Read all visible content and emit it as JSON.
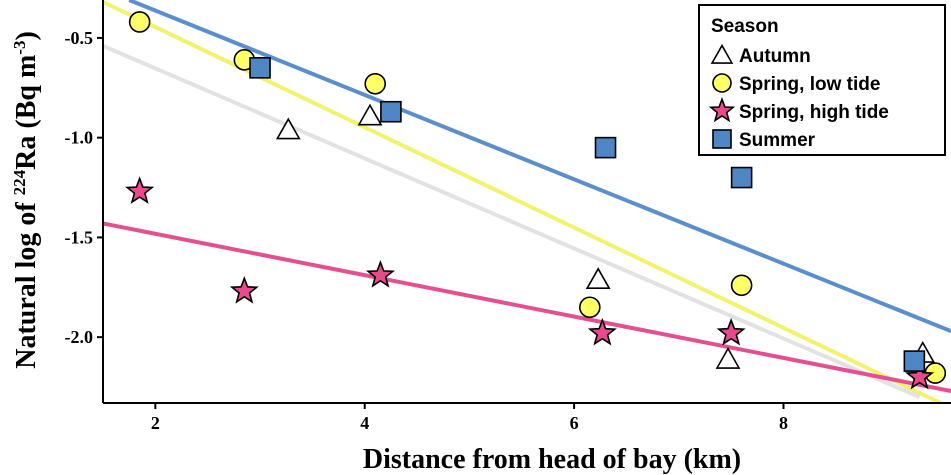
{
  "chart_data": {
    "type": "scatter",
    "title": "",
    "xlabel": "Distance from head of bay (km)",
    "ylabel_parts": [
      "Natural log of ",
      "224",
      "Ra (Bq m",
      "-3",
      ")"
    ],
    "xlim": [
      1.5,
      9.6
    ],
    "ylim": [
      -2.33,
      -0.31
    ],
    "xticks": [
      2,
      4,
      6,
      8
    ],
    "yticks": [
      -0.5,
      -1.0,
      -1.5,
      -2.0
    ],
    "ytick_labels": [
      "-0.5",
      "-1.0",
      "-1.5",
      "-2.0"
    ],
    "grid": false,
    "legend": {
      "title": "Season",
      "placement": "top-right"
    },
    "series": [
      {
        "name": "Autumn",
        "marker": "triangle",
        "color": "#ffffff",
        "points": [
          [
            3.27,
            -0.96
          ],
          [
            4.05,
            -0.89
          ],
          [
            6.23,
            -1.71
          ],
          [
            7.47,
            -2.11
          ],
          [
            9.33,
            -2.08
          ]
        ],
        "fit": [
          [
            1.5,
            -0.54
          ],
          [
            9.3,
            -2.3
          ]
        ],
        "fit_color": "#e2e2e2"
      },
      {
        "name": "Spring, low tide",
        "marker": "circle",
        "color": "#ffff66",
        "points": [
          [
            1.85,
            -0.42
          ],
          [
            2.85,
            -0.61
          ],
          [
            4.1,
            -0.73
          ],
          [
            6.15,
            -1.85
          ],
          [
            7.6,
            -1.74
          ],
          [
            9.45,
            -2.18
          ]
        ],
        "fit": [
          [
            1.5,
            -0.32
          ],
          [
            9.5,
            -2.33
          ]
        ],
        "fit_color": "#f2f26c"
      },
      {
        "name": "Spring, high tide",
        "marker": "star",
        "color": "#e94a8d",
        "points": [
          [
            1.85,
            -1.27
          ],
          [
            2.85,
            -1.77
          ],
          [
            4.15,
            -1.69
          ],
          [
            6.27,
            -1.98
          ],
          [
            7.5,
            -1.98
          ],
          [
            9.3,
            -2.2
          ]
        ],
        "fit": [
          [
            1.5,
            -1.43
          ],
          [
            9.6,
            -2.27
          ]
        ],
        "fit_color": "#e4508f"
      },
      {
        "name": "Summer",
        "marker": "square",
        "color": "#4f86c6",
        "points": [
          [
            3.0,
            -0.65
          ],
          [
            4.25,
            -0.87
          ],
          [
            6.3,
            -1.05
          ],
          [
            7.6,
            -1.2
          ],
          [
            9.25,
            -2.12
          ]
        ],
        "fit": [
          [
            1.75,
            -0.31
          ],
          [
            9.6,
            -1.97
          ]
        ],
        "fit_color": "#5b8fcc"
      }
    ]
  }
}
